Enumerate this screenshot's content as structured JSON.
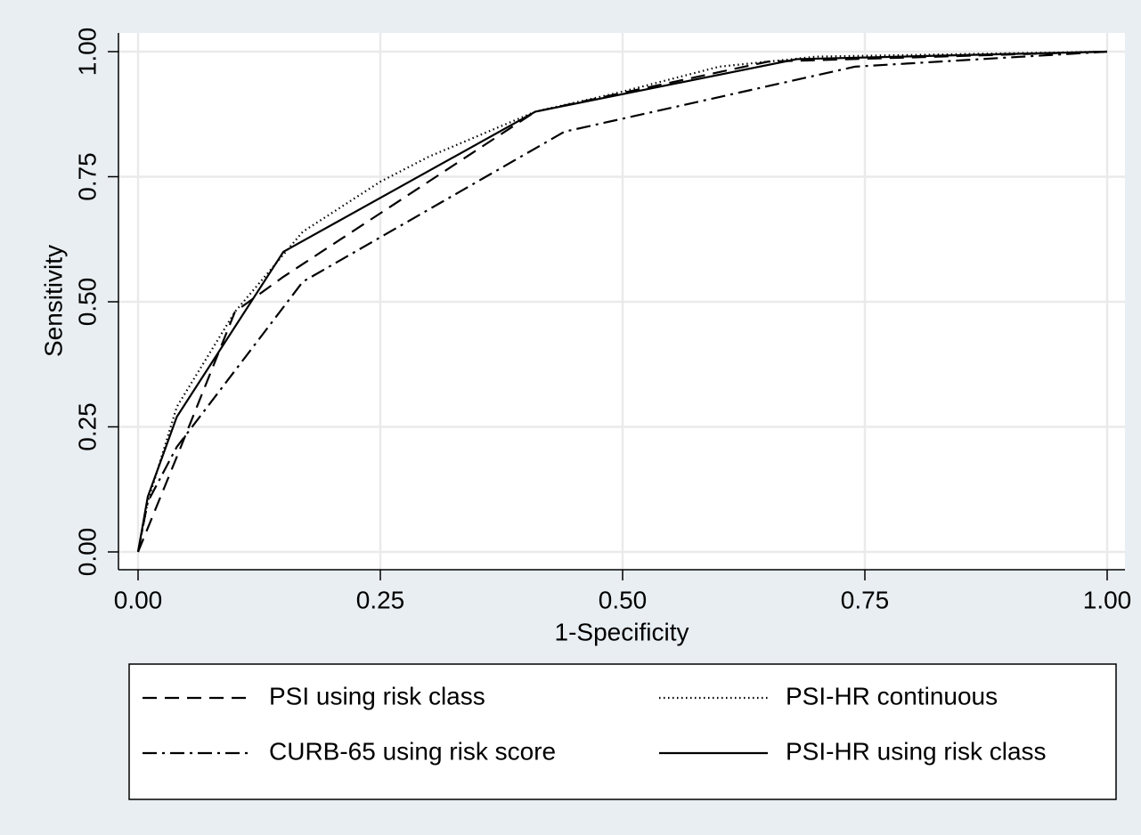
{
  "chart_data": {
    "type": "line",
    "x_label": "1-Specificity",
    "y_label": "Sensitivity",
    "xlim": [
      0,
      1
    ],
    "ylim": [
      0,
      1
    ],
    "xticks": [
      {
        "value": 0,
        "label": "0.00"
      },
      {
        "value": 0.25,
        "label": "0.25"
      },
      {
        "value": 0.5,
        "label": "0.50"
      },
      {
        "value": 0.75,
        "label": "0.75"
      },
      {
        "value": 1,
        "label": "1.00"
      }
    ],
    "yticks": [
      {
        "value": 0,
        "label": "0.00"
      },
      {
        "value": 0.25,
        "label": "0.25"
      },
      {
        "value": 0.5,
        "label": "0.50"
      },
      {
        "value": 0.75,
        "label": "0.75"
      },
      {
        "value": 1,
        "label": "1.00"
      }
    ],
    "grid": true,
    "legend": "bottom",
    "series": [
      {
        "name": "PSI using risk class",
        "color": "#000000",
        "dash": "16 9",
        "x": [
          0,
          0.04,
          0.1,
          0.15,
          0.41,
          0.65,
          1
        ],
        "values": [
          0,
          0.19,
          0.48,
          0.55,
          0.88,
          0.98,
          1
        ]
      },
      {
        "name": "PSI-HR continuous",
        "color": "#000000",
        "dash": "1.5 3.5",
        "x": [
          0,
          0.01,
          0.04,
          0.1,
          0.17,
          0.25,
          0.3,
          0.41,
          0.5,
          0.6,
          0.7,
          1
        ],
        "values": [
          0,
          0.1,
          0.29,
          0.48,
          0.64,
          0.74,
          0.79,
          0.88,
          0.92,
          0.97,
          0.99,
          1
        ]
      },
      {
        "name": "CURB-65 using risk score",
        "color": "#000000",
        "dash": "16 6 3 6",
        "x": [
          0,
          0.01,
          0.04,
          0.17,
          0.44,
          0.74,
          1
        ],
        "values": [
          0,
          0.1,
          0.21,
          0.54,
          0.84,
          0.97,
          1
        ]
      },
      {
        "name": "PSI-HR using risk class",
        "color": "#000000",
        "dash": "none",
        "x": [
          0,
          0.01,
          0.04,
          0.15,
          0.41,
          0.68,
          1
        ],
        "values": [
          0,
          0.11,
          0.27,
          0.6,
          0.88,
          0.985,
          1
        ]
      }
    ]
  }
}
